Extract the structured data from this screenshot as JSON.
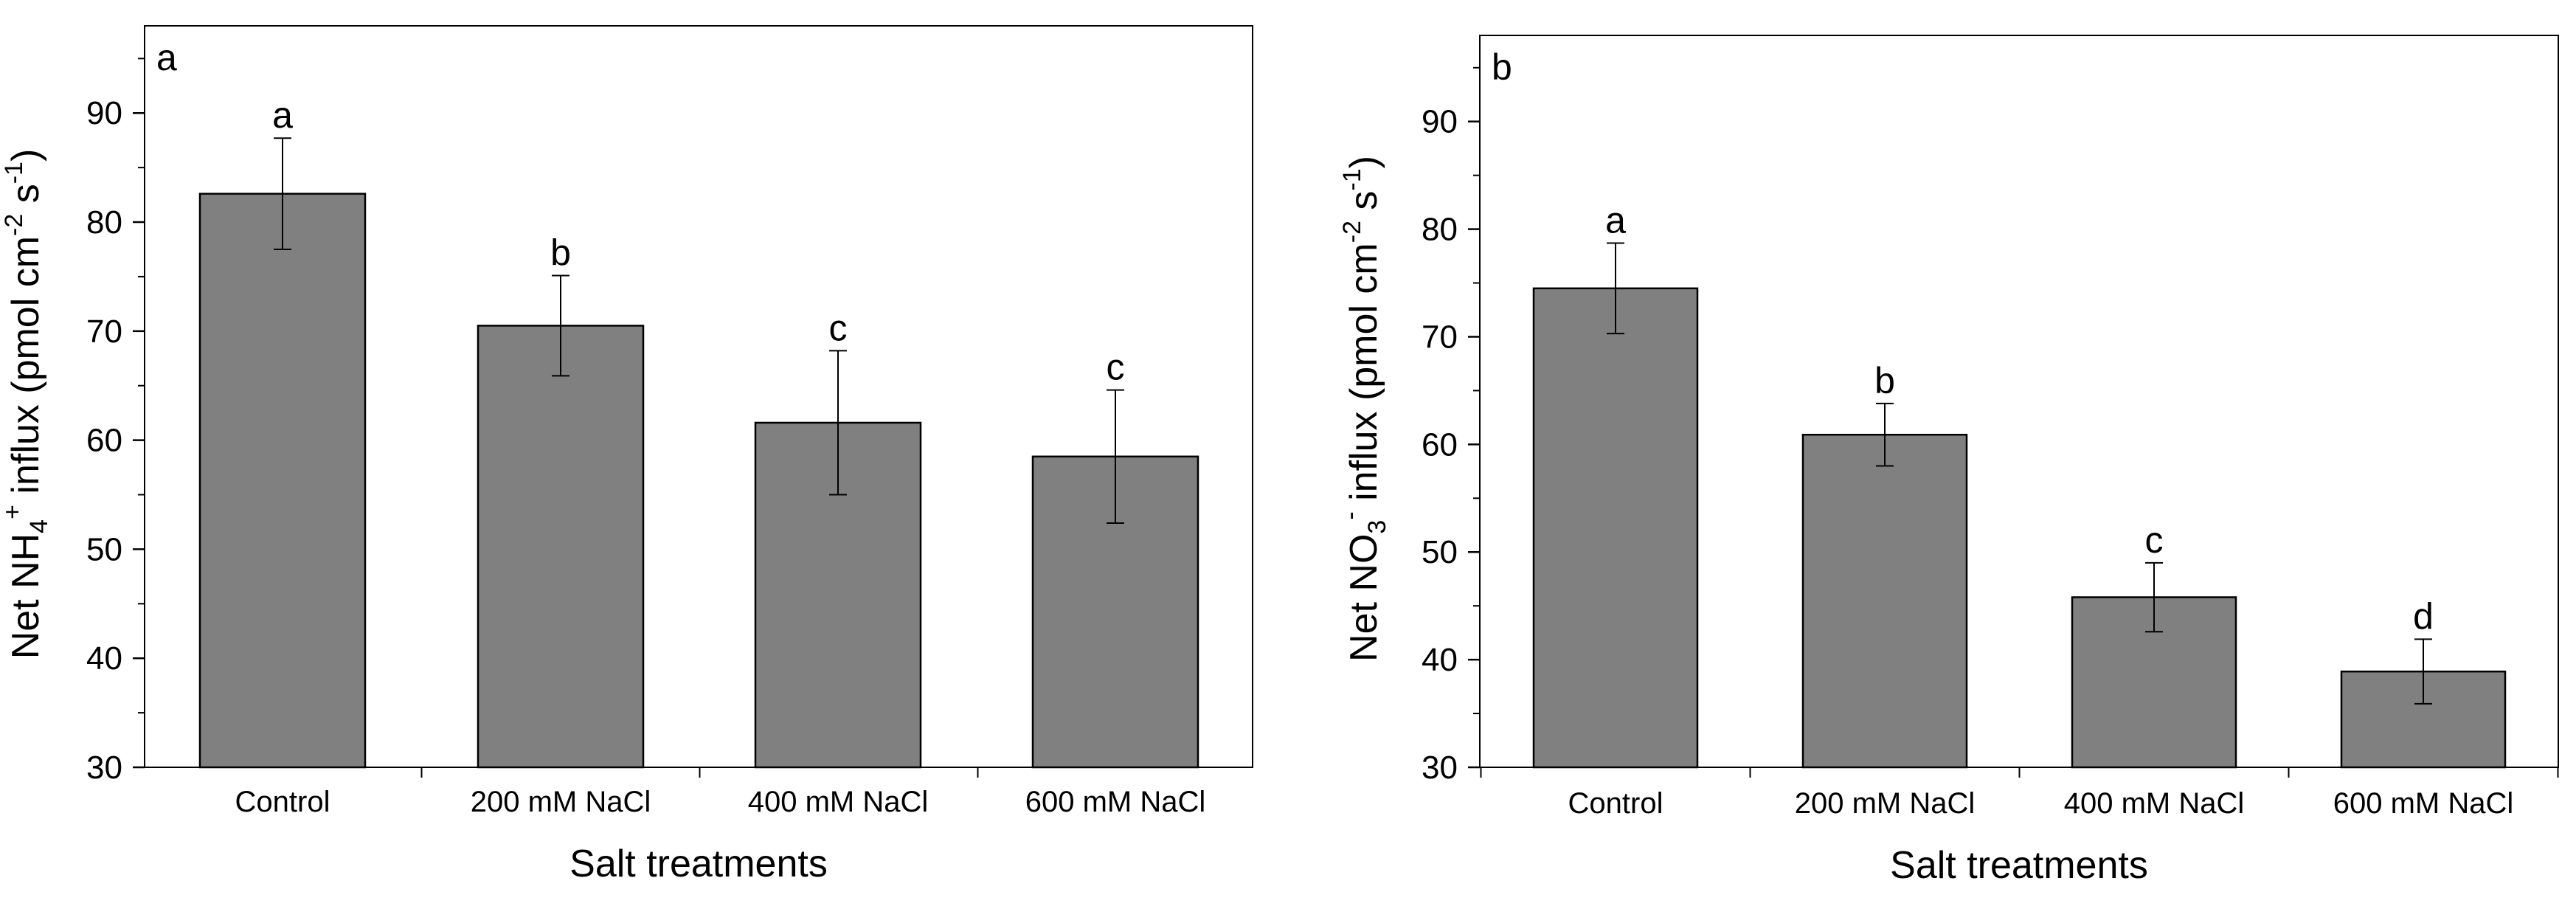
{
  "figure": {
    "colors": {
      "bar_fill": "#808080",
      "bar_stroke": "#000000",
      "axis": "#000000",
      "background": "#ffffff"
    }
  },
  "chart_data": [
    {
      "type": "bar",
      "panel_label": "a",
      "categories": [
        "Control",
        "200 mM NaCl",
        "400 mM NaCl",
        "600 mM NaCl"
      ],
      "values": [
        82.6,
        70.5,
        61.6,
        58.5
      ],
      "errors": [
        5.1,
        4.6,
        6.6,
        6.1
      ],
      "significance": [
        "a",
        "b",
        "c",
        "c"
      ],
      "xlabel": "Salt treatments",
      "ylabel": {
        "prefix": "Net NH",
        "sub": "4",
        "sup": "+",
        "middle": " influx (pmol cm",
        "sup2": "-2",
        "mid2": " s",
        "sup3": "-1",
        "suffix": ")"
      },
      "ylim": [
        30,
        98
      ],
      "yticks": [
        30,
        40,
        50,
        60,
        70,
        80,
        90
      ]
    },
    {
      "type": "bar",
      "panel_label": "b",
      "categories": [
        "Control",
        "200 mM NaCl",
        "400 mM NaCl",
        "600 mM NaCl"
      ],
      "values": [
        74.5,
        60.9,
        45.8,
        38.9
      ],
      "errors": [
        4.2,
        2.9,
        3.2,
        3.0
      ],
      "significance": [
        "a",
        "b",
        "c",
        "d"
      ],
      "xlabel": "Salt treatments",
      "ylabel": {
        "prefix": "Net NO",
        "sub": "3",
        "sup": "-",
        "middle": " influx (pmol cm",
        "sup2": "-2",
        "mid2": " s",
        "sup3": "-1",
        "suffix": ")"
      },
      "ylim": [
        30,
        98
      ],
      "yticks": [
        30,
        40,
        50,
        60,
        70,
        80,
        90
      ]
    }
  ]
}
